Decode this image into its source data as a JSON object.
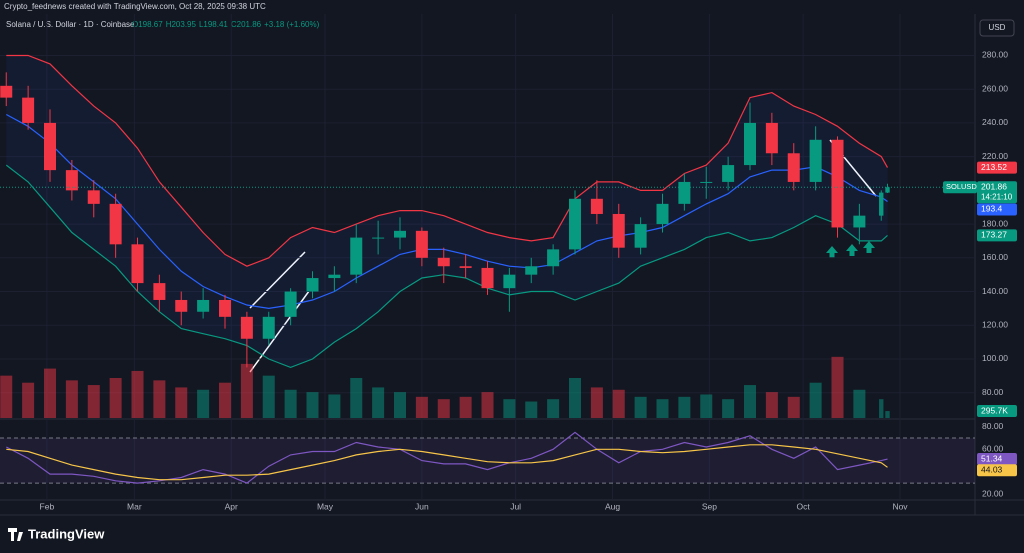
{
  "header": {
    "credit": "Crypto_feednews created with TradingView.com, Oct 28, 2025 09:38 UTC",
    "currency": "USD",
    "logo": "TradingView"
  },
  "chart_data": {
    "type": "candlestick",
    "title": "Solana / U.S. Dollar · 1D · Coinbase",
    "symbol": "SOLUSD",
    "countdown": "14:21:10",
    "ohlc_legend": [
      "O198.67",
      "H203.95",
      "L198.41",
      "C201.86",
      "+3.18 (+1.60%)"
    ],
    "x": [
      19,
      26,
      33,
      40,
      47,
      54,
      61,
      68,
      75,
      82,
      89,
      96,
      103,
      110,
      117,
      124,
      131,
      138,
      145,
      152,
      159,
      166,
      173,
      180,
      187,
      194,
      201,
      208,
      215,
      222,
      229,
      236,
      243,
      250,
      257,
      264,
      271,
      278,
      285,
      292,
      299,
      301
    ],
    "xlim": [
      17,
      329
    ],
    "xticks": [
      {
        "value": 32,
        "label": "Feb"
      },
      {
        "value": 60,
        "label": "Mar"
      },
      {
        "value": 91,
        "label": "Apr"
      },
      {
        "value": 121,
        "label": "May"
      },
      {
        "value": 152,
        "label": "Jun"
      },
      {
        "value": 182,
        "label": "Jul"
      },
      {
        "value": 213,
        "label": "Aug"
      },
      {
        "value": 244,
        "label": "Sep"
      },
      {
        "value": 274,
        "label": "Oct"
      },
      {
        "value": 305,
        "label": "Nov"
      }
    ],
    "open": [
      262,
      255,
      240,
      212,
      200,
      192,
      168,
      145,
      135,
      128,
      135,
      125,
      112,
      125,
      140,
      148,
      150,
      172,
      172,
      176,
      160,
      155,
      154,
      142,
      150,
      155,
      165,
      195,
      186,
      166,
      180,
      192,
      205,
      205,
      215,
      240,
      222,
      205,
      230,
      178,
      185,
      198.67
    ],
    "high": [
      270,
      262,
      248,
      218,
      206,
      198,
      172,
      150,
      140,
      142,
      138,
      128,
      128,
      142,
      152,
      155,
      180,
      182,
      184,
      178,
      166,
      162,
      158,
      154,
      160,
      168,
      200,
      206,
      192,
      184,
      198,
      210,
      214,
      220,
      252,
      246,
      228,
      238,
      232,
      192,
      200,
      203.95
    ],
    "low": [
      250,
      236,
      205,
      194,
      184,
      160,
      140,
      128,
      120,
      124,
      118,
      95,
      108,
      120,
      136,
      140,
      145,
      162,
      165,
      155,
      145,
      148,
      138,
      128,
      145,
      150,
      162,
      180,
      160,
      162,
      175,
      188,
      195,
      200,
      212,
      215,
      200,
      200,
      172,
      168,
      182,
      198.41
    ],
    "close": [
      255,
      240,
      212,
      200,
      192,
      168,
      145,
      135,
      128,
      135,
      125,
      112,
      125,
      140,
      148,
      150,
      172,
      172,
      176,
      160,
      155,
      154,
      142,
      150,
      155,
      165,
      195,
      186,
      166,
      180,
      192,
      205,
      205,
      215,
      240,
      222,
      205,
      230,
      178,
      185,
      198.67,
      201.86
    ],
    "up_color": "#089981",
    "down_color": "#f23645",
    "ylim": [
      65,
      304
    ],
    "yticks": [
      {
        "value": 80,
        "label": "80.00"
      },
      {
        "value": 100,
        "label": "100.00"
      },
      {
        "value": 120,
        "label": "120.00"
      },
      {
        "value": 140,
        "label": "140.00"
      },
      {
        "value": 160,
        "label": "160.00"
      },
      {
        "value": 180,
        "label": "180.00"
      },
      {
        "value": 220,
        "label": "220.00"
      },
      {
        "value": 240,
        "label": "240.00"
      },
      {
        "value": 260,
        "label": "260.00"
      },
      {
        "value": 280,
        "label": "280.00"
      }
    ],
    "bands": [
      {
        "color": "#f23645",
        "values": [
          280,
          280,
          275,
          262,
          250,
          240,
          225,
          205,
          190,
          175,
          162,
          155,
          160,
          172,
          178,
          175,
          180,
          185,
          188,
          188,
          185,
          180,
          175,
          172,
          170,
          172,
          195,
          205,
          205,
          200,
          200,
          210,
          215,
          228,
          255,
          258,
          250,
          245,
          238,
          228,
          220,
          213.52
        ]
      },
      {
        "color": "#2962ff",
        "values": [
          245,
          238,
          228,
          215,
          205,
          195,
          180,
          165,
          152,
          143,
          137,
          132,
          130,
          132,
          135,
          140,
          148,
          155,
          162,
          165,
          165,
          162,
          158,
          155,
          154,
          156,
          163,
          170,
          173,
          175,
          178,
          185,
          192,
          198,
          208,
          212,
          212,
          214,
          208,
          200,
          196,
          193.4
        ]
      },
      {
        "color": "#089981",
        "values": [
          215,
          205,
          190,
          175,
          165,
          155,
          140,
          128,
          118,
          115,
          112,
          108,
          100,
          95,
          100,
          110,
          118,
          128,
          140,
          148,
          150,
          148,
          142,
          138,
          140,
          140,
          135,
          140,
          145,
          155,
          160,
          165,
          172,
          175,
          170,
          172,
          178,
          185,
          180,
          170,
          170,
          173.27
        ]
      }
    ],
    "volume": {
      "ylim": [
        0,
        3400
      ],
      "values": [
        1800,
        1500,
        2100,
        1600,
        1400,
        1700,
        2000,
        1600,
        1300,
        1200,
        1500,
        2300,
        1800,
        1200,
        1100,
        1000,
        1700,
        1300,
        1100,
        900,
        800,
        900,
        1100,
        800,
        700,
        800,
        1700,
        1300,
        1200,
        900,
        800,
        900,
        1000,
        800,
        1400,
        1100,
        900,
        1500,
        2600,
        1200,
        800,
        295.7
      ],
      "last_label": "295.7K"
    },
    "rsi": {
      "ylim": [
        15,
        86
      ],
      "yticks": [
        {
          "value": 80,
          "label": "80.00"
        },
        {
          "value": 60,
          "label": "60.00"
        },
        {
          "value": 20,
          "label": "20.00"
        }
      ],
      "bands": [
        70,
        30
      ],
      "series": [
        {
          "color": "#7e57c2",
          "values": [
            62,
            52,
            38,
            38,
            36,
            32,
            30,
            32,
            35,
            42,
            38,
            30,
            45,
            55,
            58,
            58,
            66,
            62,
            60,
            50,
            47,
            47,
            42,
            48,
            52,
            60,
            75,
            60,
            48,
            58,
            60,
            66,
            62,
            66,
            72,
            60,
            52,
            62,
            42,
            46,
            50,
            51.34
          ]
        },
        {
          "color": "#f7c548",
          "values": [
            60,
            58,
            52,
            46,
            42,
            38,
            35,
            33,
            33,
            35,
            37,
            37,
            38,
            42,
            46,
            50,
            55,
            58,
            60,
            58,
            55,
            52,
            49,
            48,
            48,
            50,
            55,
            60,
            60,
            58,
            57,
            58,
            60,
            62,
            64,
            64,
            62,
            60,
            56,
            52,
            48,
            44.03
          ]
        }
      ]
    }
  }
}
